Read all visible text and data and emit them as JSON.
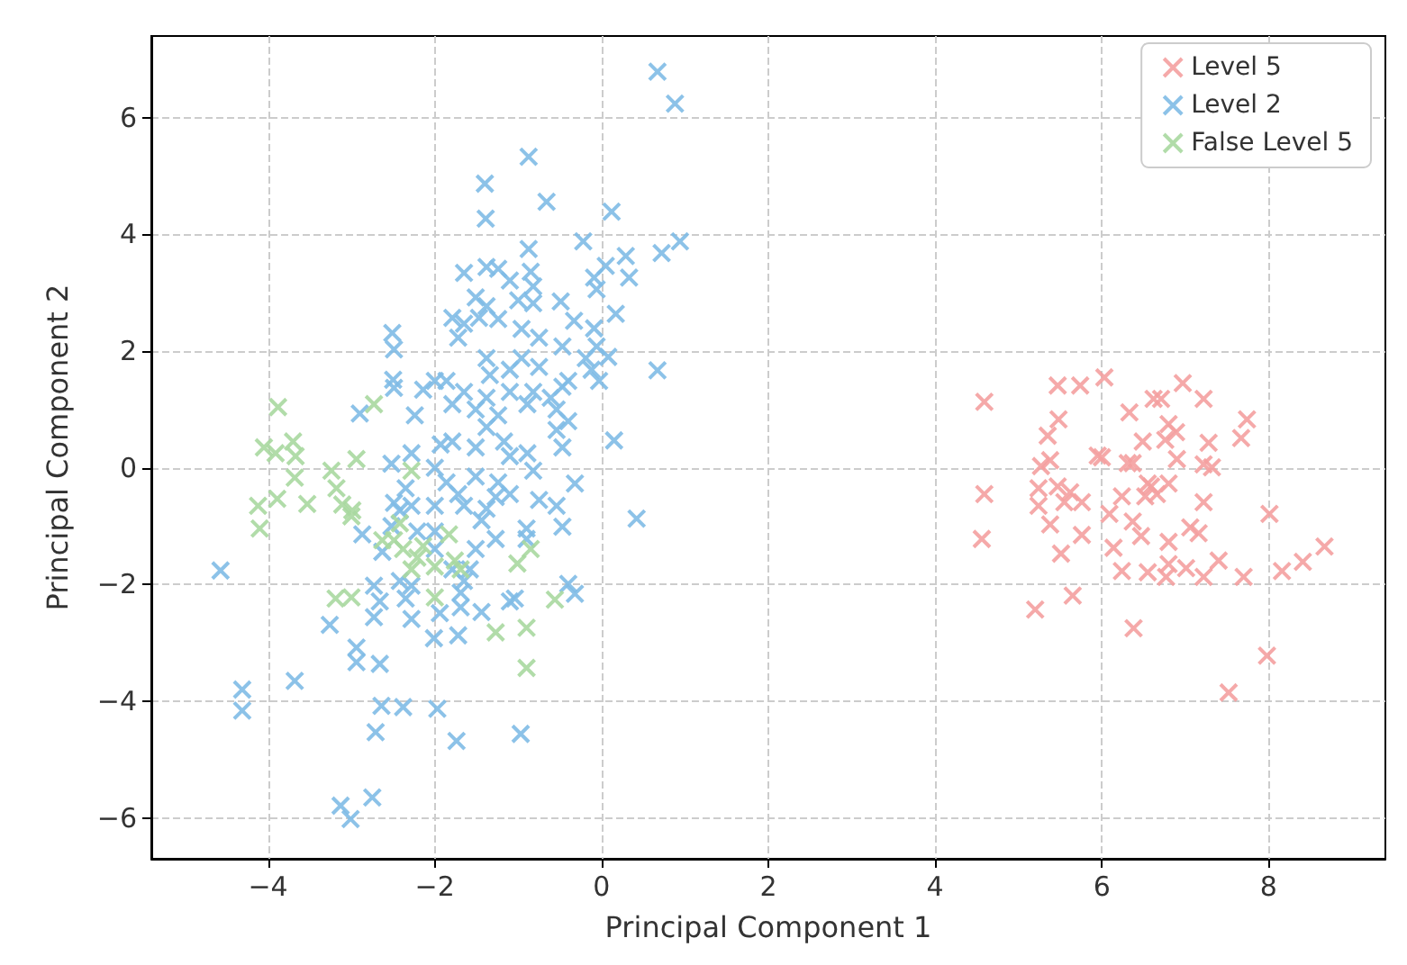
{
  "chart_data": {
    "type": "scatter",
    "xlabel": "Principal Component 1",
    "ylabel": "Principal Component 2",
    "xlim": [
      -5.4,
      9.4
    ],
    "ylim": [
      -6.7,
      7.4
    ],
    "xticks": [
      -4,
      -2,
      0,
      2,
      4,
      6,
      8
    ],
    "yticks": [
      -6,
      -4,
      -2,
      0,
      2,
      4,
      6
    ],
    "grid": true,
    "legend": "top right",
    "marker": "cross",
    "series": [
      {
        "name": "Level 5",
        "color": "#f4a0a0",
        "x": [
          4.59,
          5.47,
          5.74,
          6.03,
          4.59,
          4.56,
          5.2,
          5.65,
          5.48,
          5.35,
          5.38,
          5.27,
          5.24,
          5.24,
          5.47,
          5.62,
          5.55,
          5.76,
          5.38,
          5.76,
          5.51,
          5.95,
          6.0,
          6.33,
          6.31,
          6.37,
          6.24,
          6.09,
          6.14,
          6.37,
          6.47,
          6.24,
          6.38,
          6.49,
          6.52,
          6.59,
          6.62,
          6.71,
          6.97,
          7.22,
          6.8,
          6.89,
          6.76,
          6.9,
          6.8,
          6.55,
          6.8,
          6.8,
          7.01,
          6.77,
          7.22,
          7.06,
          7.16,
          7.22,
          7.28,
          7.32,
          7.22,
          7.4,
          7.7,
          7.67,
          7.74,
          8.01,
          8.16,
          8.41,
          8.67,
          7.98,
          7.52,
          6.55,
          6.66
        ],
        "values": [
          1.13,
          1.41,
          1.41,
          1.55,
          -0.45,
          -1.22,
          -2.43,
          -2.19,
          0.83,
          0.55,
          0.13,
          0.03,
          -0.35,
          -0.65,
          -0.32,
          -0.42,
          -0.59,
          -0.59,
          -0.97,
          -1.15,
          -1.47,
          0.21,
          0.18,
          0.95,
          0.08,
          0.08,
          -0.49,
          -0.79,
          -1.37,
          -0.92,
          -1.17,
          -1.77,
          -2.75,
          0.45,
          -0.49,
          -0.32,
          1.18,
          1.18,
          1.45,
          1.18,
          0.75,
          0.61,
          0.48,
          0.15,
          -0.27,
          -1.79,
          -1.27,
          -1.65,
          -1.72,
          -1.87,
          -1.87,
          -1.02,
          -1.12,
          -0.59,
          0.43,
          0.01,
          0.06,
          -1.59,
          -1.87,
          0.51,
          0.83,
          -0.79,
          -1.77,
          -1.61,
          -1.35,
          -3.22,
          -3.85,
          -0.27,
          -0.45
        ]
      },
      {
        "name": "Level 2",
        "color": "#7fbbe6",
        "x": [
          0.67,
          0.88,
          -0.875,
          -1.4,
          -1.39,
          -0.66,
          0.12,
          -0.875,
          -0.22,
          0.72,
          0.94,
          0.29,
          0.33,
          0.05,
          -0.09,
          -1.65,
          -1.38,
          -1.24,
          -1.1,
          -0.85,
          -0.82,
          -1.51,
          -1.38,
          -1.0,
          -0.82,
          -0.49,
          -0.06,
          0.17,
          -1.79,
          -1.65,
          -1.72,
          -1.47,
          -1.24,
          -0.96,
          -0.75,
          -0.33,
          -0.09,
          -0.06,
          -0.47,
          -0.19,
          0.08,
          0.67,
          -2.51,
          -2.49,
          -2.5,
          -2.49,
          -2.14,
          -2.0,
          -1.86,
          -2.9,
          -2.24,
          -1.38,
          -1.34,
          -1.1,
          -0.96,
          -0.75,
          -0.4,
          -0.03,
          -1.65,
          -1.38,
          -1.1,
          -0.82,
          -0.61,
          -0.47,
          -0.12,
          -1.79,
          -1.51,
          -1.24,
          -0.89,
          -0.54,
          -0.4,
          -4.57,
          -4.31,
          -4.31,
          -3.68,
          -3.26,
          -2.94,
          -2.94,
          -2.66,
          -2.64,
          -2.38,
          -2.71,
          -1.97,
          -1.74,
          -0.97,
          -3.13,
          -3.01,
          -2.75,
          0.15,
          0.42,
          -0.32,
          -0.47,
          -0.4,
          -0.32,
          -1.04,
          -1.1,
          -1.44,
          -1.72,
          -2.01,
          -2.28,
          -1.94,
          -1.69,
          -2.73,
          -2.66,
          -2.73,
          -2.35,
          -2.42,
          -2.28,
          -1.69,
          -1.65,
          -1.79,
          -1.58,
          -1.51,
          -1.27,
          -0.9,
          -0.9,
          -2.87,
          -2.63,
          -2.52,
          -2.42,
          -2.49,
          -2.28,
          -2.52,
          -2.28,
          -2.0,
          -2.0,
          -2.0,
          -2.21,
          -2.35,
          -1.93,
          -1.79,
          -1.51,
          -1.38,
          -1.17,
          -1.1,
          -0.89,
          -1.86,
          -1.72,
          -1.51,
          -1.24,
          -1.1,
          -0.82,
          -0.75,
          -0.54,
          -0.47,
          -1.44,
          -1.65,
          -1.38,
          -1.27,
          -2.0,
          -0.54
        ],
        "values": [
          6.79,
          6.24,
          5.33,
          4.87,
          4.27,
          4.56,
          4.39,
          3.75,
          3.88,
          3.68,
          3.88,
          3.63,
          3.26,
          3.46,
          3.26,
          3.34,
          3.44,
          3.41,
          3.21,
          3.36,
          3.11,
          2.92,
          2.77,
          2.87,
          2.82,
          2.85,
          3.06,
          2.64,
          2.57,
          2.47,
          2.23,
          2.57,
          2.55,
          2.38,
          2.23,
          2.52,
          2.39,
          2.08,
          2.08,
          1.88,
          1.9,
          1.67,
          2.31,
          2.03,
          1.51,
          1.37,
          1.34,
          1.49,
          1.49,
          0.93,
          0.9,
          1.88,
          1.59,
          1.68,
          1.88,
          1.73,
          1.49,
          1.49,
          1.3,
          1.2,
          1.3,
          1.3,
          1.2,
          1.39,
          1.68,
          1.09,
          1.0,
          0.9,
          1.09,
          1.0,
          0.8,
          -1.76,
          -3.8,
          -4.16,
          -3.65,
          -2.69,
          -3.08,
          -3.33,
          -3.36,
          -4.08,
          -4.1,
          -4.53,
          -4.13,
          -4.68,
          -4.56,
          -5.79,
          -6.02,
          -5.65,
          0.47,
          -0.87,
          -0.27,
          -1.01,
          -1.99,
          -2.16,
          -2.24,
          -2.29,
          -2.47,
          -2.87,
          -2.92,
          -2.59,
          -2.49,
          -2.39,
          -2.02,
          -2.29,
          -2.56,
          -2.24,
          -1.94,
          -2.02,
          -2.14,
          -1.94,
          -1.74,
          -1.74,
          -1.39,
          -1.22,
          -1.04,
          -1.22,
          -1.14,
          -1.44,
          -1.0,
          -0.73,
          -0.6,
          -0.65,
          0.07,
          0.25,
          0.0,
          -0.65,
          -1.09,
          -1.09,
          -0.35,
          0.4,
          0.45,
          0.35,
          0.7,
          0.45,
          0.2,
          0.25,
          -0.25,
          -0.45,
          -0.15,
          -0.25,
          -0.45,
          -0.05,
          -0.55,
          0.65,
          0.35,
          -0.9,
          -0.65,
          -0.7,
          -0.5,
          -1.39,
          -0.65
        ]
      },
      {
        "name": "False Level 5",
        "color": "#a8d8a0",
        "x": [
          -3.88,
          -2.73,
          -4.05,
          -3.91,
          -3.7,
          -3.67,
          -3.68,
          -4.12,
          -4.1,
          -3.89,
          -3.53,
          -3.24,
          -3.18,
          -2.94,
          -3.11,
          -3.0,
          -2.99,
          -3.19,
          -3.0,
          -2.28,
          -2.42,
          -2.49,
          -2.38,
          -2.21,
          -2.28,
          -2.0,
          -1.83,
          -1.76,
          -1.69,
          -2.0,
          -1.27,
          -1.01,
          -0.85,
          -0.9,
          -0.9,
          -0.56,
          -2.63,
          -2.14
        ],
        "values": [
          1.04,
          1.09,
          0.35,
          0.25,
          0.45,
          0.2,
          -0.17,
          -0.65,
          -1.04,
          -0.53,
          -0.62,
          -0.05,
          -0.35,
          0.15,
          -0.63,
          -0.83,
          -0.73,
          -2.24,
          -2.22,
          -0.05,
          -0.95,
          -1.24,
          -1.39,
          -1.54,
          -1.74,
          -1.69,
          -1.14,
          -1.59,
          -1.74,
          -2.22,
          -2.82,
          -1.64,
          -1.39,
          -2.74,
          -3.43,
          -2.26,
          -1.24,
          -1.34
        ]
      }
    ]
  }
}
